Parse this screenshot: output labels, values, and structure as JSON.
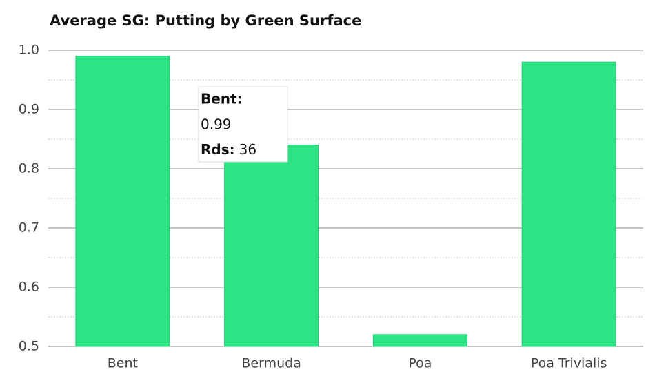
{
  "chart_data": {
    "type": "bar",
    "title": "Average SG: Putting by Green Surface",
    "categories": [
      "Bent",
      "Bermuda",
      "Poa",
      "Poa Trivialis"
    ],
    "values": [
      0.99,
      0.84,
      0.52,
      0.98
    ],
    "color": "#2ee585",
    "ylim": [
      0.5,
      1.0
    ],
    "yticks": [
      0.5,
      0.6,
      0.7,
      0.8,
      0.9,
      {
        "value": 1.0,
        "label": "1.0"
      }
    ],
    "minor_yticks": [
      0.55,
      0.65,
      0.75,
      0.85,
      0.95
    ],
    "grid": true,
    "tooltip": {
      "title": "Bent:",
      "value": 0.99,
      "rounds_label": "Rds:",
      "rounds": 36
    }
  }
}
